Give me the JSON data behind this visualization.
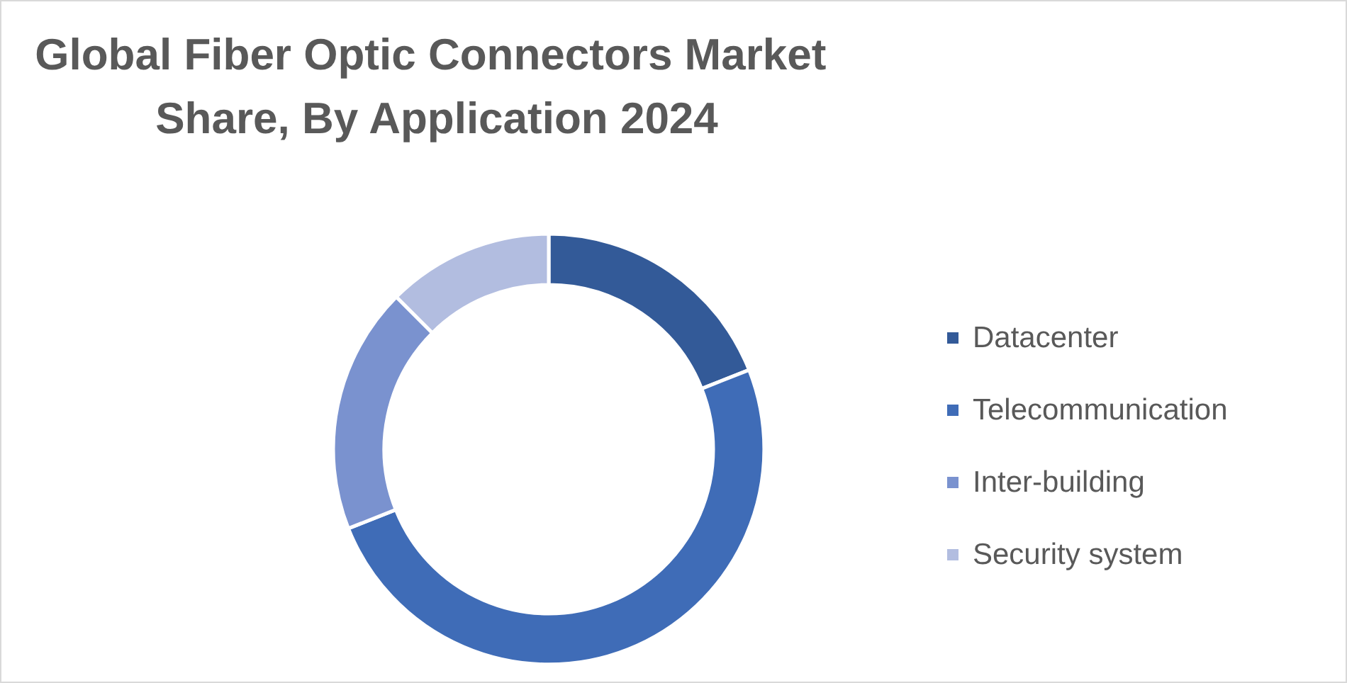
{
  "chart_data": {
    "type": "donut",
    "title": "Global Fiber Optic Connectors Market Share, By Application 2024",
    "categories": [
      "Datacenter",
      "Telecommunication",
      "Inter-building",
      "Security system"
    ],
    "values": [
      19,
      50,
      18.5,
      12.5
    ],
    "colors": [
      "#335a98",
      "#3f6cb7",
      "#7a92cf",
      "#b2bde0"
    ],
    "legend": "right"
  }
}
